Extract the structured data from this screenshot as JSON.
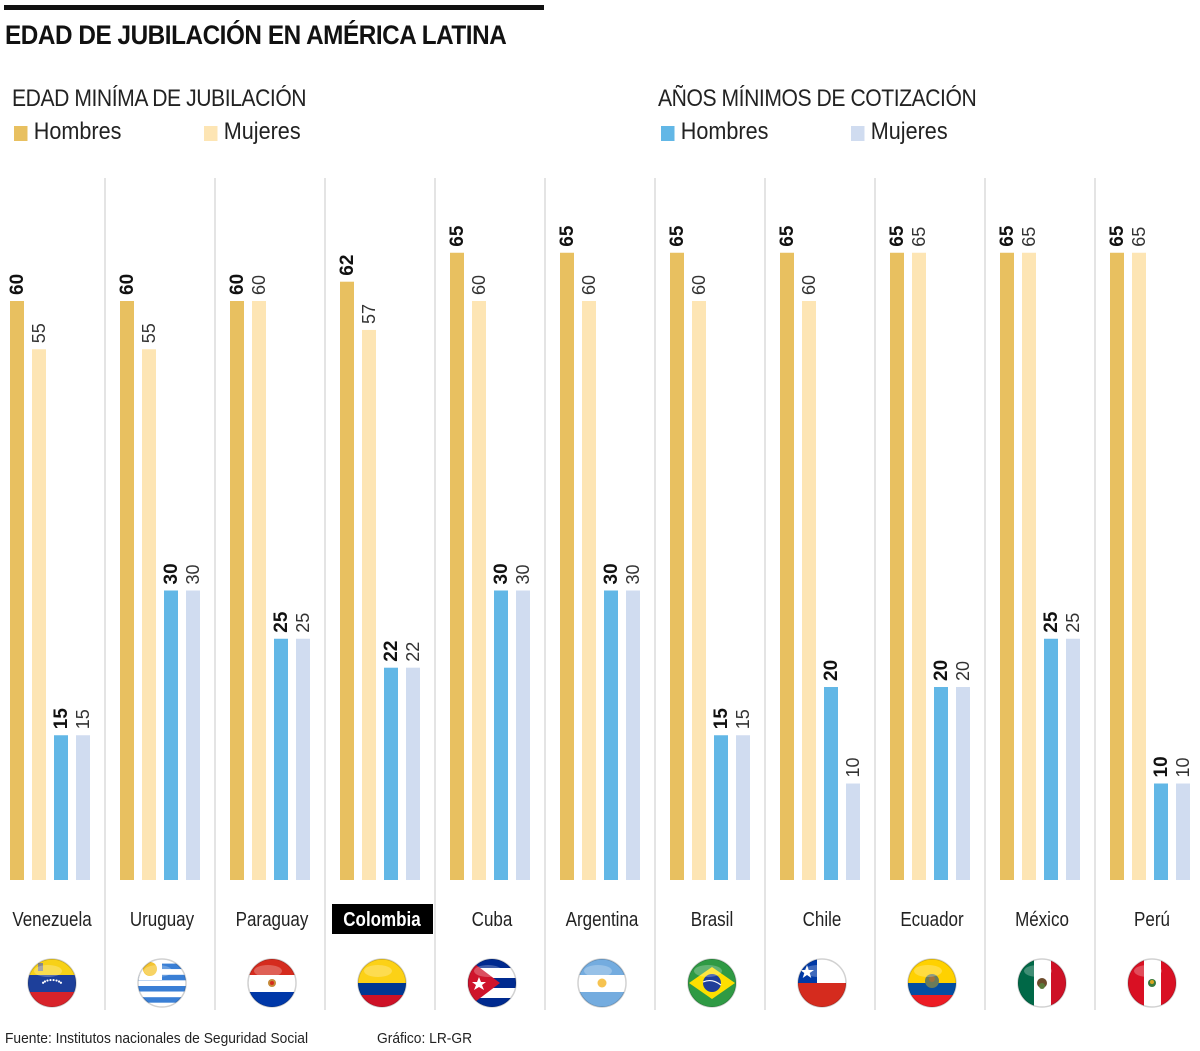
{
  "title": "EDAD DE JUBILACIÓN EN AMÉRICA LATINA",
  "legend": {
    "age": {
      "title": "EDAD MINÍMA DE JUBILACIÓN",
      "men": "Hombres",
      "women": "Mujeres"
    },
    "contrib": {
      "title": "AÑOS MÍNIMOS DE COTIZACIÓN",
      "men": "Hombres",
      "women": "Mujeres"
    }
  },
  "colors": {
    "age_men": "#e8c060",
    "age_women": "#fde5b4",
    "contrib_men": "#62b7e6",
    "contrib_women": "#d0dcf0",
    "divider": "#c8c8c8",
    "highlight_bg": "#000000",
    "highlight_text": "#ffffff"
  },
  "footer": {
    "source": "Fuente: Institutos nacionales de Seguridad Social",
    "credit": "Gráfico: LR-GR"
  },
  "chart_data": {
    "type": "bar",
    "title": "EDAD DE JUBILACIÓN EN AMÉRICA LATINA",
    "xlabel": "",
    "ylabel": "",
    "ylim": [
      0,
      65
    ],
    "grid": false,
    "legend_position": "top",
    "highlighted_category": "Colombia",
    "categories": [
      "Venezuela",
      "Uruguay",
      "Paraguay",
      "Colombia",
      "Cuba",
      "Argentina",
      "Brasil",
      "Chile",
      "Ecuador",
      "México",
      "Perú"
    ],
    "flags": [
      "venezuela-flag",
      "uruguay-flag",
      "paraguay-flag",
      "colombia-flag",
      "cuba-flag",
      "argentina-flag",
      "brazil-flag",
      "chile-flag",
      "ecuador-flag",
      "mexico-flag",
      "peru-flag"
    ],
    "series": [
      {
        "name": "Edad mínima de jubilación - Hombres",
        "key": "age_men",
        "values": [
          60,
          60,
          60,
          62,
          65,
          65,
          65,
          65,
          65,
          65,
          65
        ]
      },
      {
        "name": "Edad mínima de jubilación - Mujeres",
        "key": "age_women",
        "values": [
          55,
          55,
          60,
          57,
          60,
          60,
          60,
          60,
          65,
          65,
          65
        ]
      },
      {
        "name": "Años mínimos de cotización - Hombres",
        "key": "contrib_men",
        "values": [
          15,
          30,
          25,
          22,
          30,
          30,
          15,
          20,
          20,
          25,
          10
        ]
      },
      {
        "name": "Años mínimos de cotización - Mujeres",
        "key": "contrib_women",
        "values": [
          15,
          30,
          25,
          22,
          30,
          30,
          15,
          10,
          20,
          25,
          10
        ]
      }
    ]
  }
}
